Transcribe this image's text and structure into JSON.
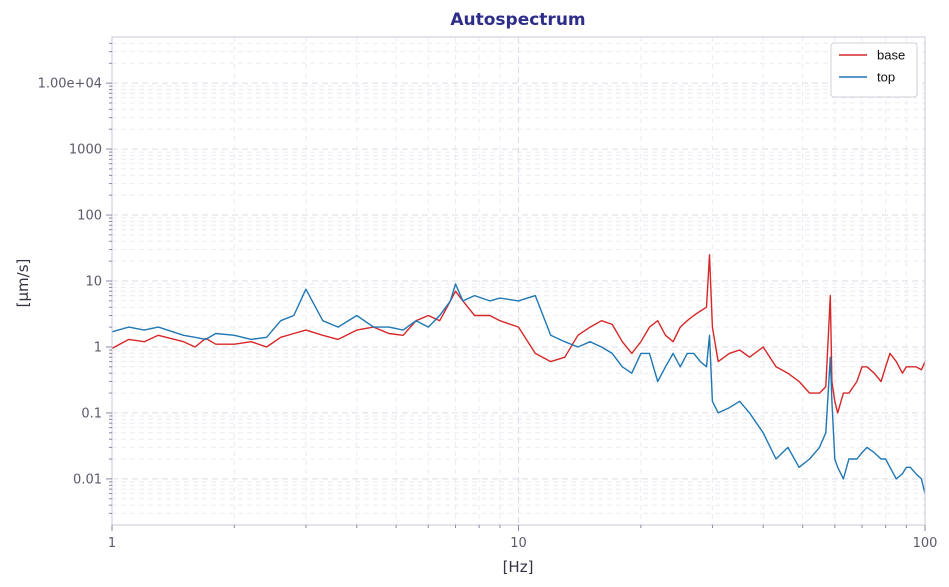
{
  "chart_data": {
    "type": "line",
    "title": "Autospectrum",
    "xlabel": "[Hz]",
    "ylabel": "[µm/s]",
    "xscale": "log",
    "yscale": "log",
    "xlim": [
      1,
      100
    ],
    "ylim": [
      0.002,
      50000
    ],
    "x_ticks": [
      {
        "value": 1,
        "label": "1"
      },
      {
        "value": 10,
        "label": "10"
      },
      {
        "value": 100,
        "label": "100"
      }
    ],
    "y_ticks": [
      {
        "value": 0.01,
        "label": "0.01"
      },
      {
        "value": 0.1,
        "label": "0.1"
      },
      {
        "value": 1,
        "label": "1"
      },
      {
        "value": 10,
        "label": "10"
      },
      {
        "value": 100,
        "label": "100"
      },
      {
        "value": 1000,
        "label": "1000"
      },
      {
        "value": 10000,
        "label": "1.00e+04"
      }
    ],
    "grid": true,
    "legend_position": "top-right",
    "series": [
      {
        "name": "base",
        "color": "#d62728",
        "x": [
          1,
          1.1,
          1.2,
          1.3,
          1.5,
          1.6,
          1.7,
          1.8,
          2.0,
          2.2,
          2.4,
          2.6,
          2.8,
          3.0,
          3.3,
          3.6,
          4.0,
          4.4,
          4.8,
          5.2,
          5.6,
          6.0,
          6.4,
          6.8,
          7.0,
          7.3,
          7.8,
          8.5,
          9.0,
          10,
          11,
          12,
          13,
          14,
          15,
          16,
          17,
          18,
          19,
          20,
          21,
          22,
          23,
          24,
          25,
          26,
          27,
          28,
          29,
          29.5,
          30,
          31,
          33,
          35,
          37,
          40,
          43,
          46,
          49,
          52,
          55,
          57,
          58.5,
          59,
          60,
          61,
          63,
          65,
          68,
          70,
          72,
          75,
          78,
          80,
          82,
          85,
          88,
          90,
          92,
          95,
          98,
          100
        ],
        "y": [
          0.95,
          1.3,
          1.2,
          1.5,
          1.2,
          1.0,
          1.35,
          1.1,
          1.1,
          1.2,
          1.0,
          1.4,
          1.6,
          1.8,
          1.5,
          1.3,
          1.8,
          2.0,
          1.6,
          1.5,
          2.5,
          3.0,
          2.5,
          5.0,
          7.0,
          5.0,
          3.0,
          3.0,
          2.5,
          2.0,
          0.8,
          0.6,
          0.7,
          1.5,
          2.0,
          2.5,
          2.2,
          1.2,
          0.8,
          1.2,
          2.0,
          2.5,
          1.5,
          1.2,
          2.0,
          2.5,
          3.0,
          3.5,
          4.0,
          25.0,
          2.0,
          0.6,
          0.8,
          0.9,
          0.7,
          1.0,
          0.5,
          0.4,
          0.3,
          0.2,
          0.2,
          0.25,
          6.0,
          0.3,
          0.15,
          0.1,
          0.2,
          0.2,
          0.3,
          0.5,
          0.5,
          0.4,
          0.3,
          0.5,
          0.8,
          0.6,
          0.4,
          0.5,
          0.5,
          0.5,
          0.45,
          0.6
        ]
      },
      {
        "name": "top",
        "color": "#1f77b4",
        "x": [
          1,
          1.1,
          1.2,
          1.3,
          1.5,
          1.6,
          1.7,
          1.8,
          2.0,
          2.2,
          2.4,
          2.6,
          2.8,
          3.0,
          3.3,
          3.6,
          4.0,
          4.4,
          4.8,
          5.2,
          5.6,
          6.0,
          6.4,
          6.8,
          7.0,
          7.3,
          7.8,
          8.5,
          9.0,
          10,
          11,
          12,
          13,
          14,
          15,
          16,
          17,
          18,
          19,
          20,
          21,
          22,
          23,
          24,
          25,
          26,
          27,
          28,
          29,
          29.5,
          30,
          31,
          33,
          35,
          37,
          40,
          43,
          46,
          49,
          52,
          55,
          57,
          58.5,
          59,
          60,
          61,
          63,
          65,
          68,
          70,
          72,
          75,
          78,
          80,
          82,
          85,
          88,
          90,
          92,
          95,
          98,
          100
        ],
        "y": [
          1.7,
          2.0,
          1.8,
          2.0,
          1.5,
          1.4,
          1.3,
          1.6,
          1.5,
          1.3,
          1.4,
          2.5,
          3.0,
          7.5,
          2.5,
          2.0,
          3.0,
          2.0,
          2.0,
          1.8,
          2.5,
          2.0,
          3.0,
          5.0,
          9.0,
          5.0,
          6.0,
          5.0,
          5.5,
          5.0,
          6.0,
          1.5,
          1.2,
          1.0,
          1.2,
          1.0,
          0.8,
          0.5,
          0.4,
          0.8,
          0.8,
          0.3,
          0.5,
          0.8,
          0.5,
          0.8,
          0.8,
          0.6,
          0.5,
          1.5,
          0.15,
          0.1,
          0.12,
          0.15,
          0.1,
          0.05,
          0.02,
          0.03,
          0.015,
          0.02,
          0.03,
          0.05,
          0.7,
          0.15,
          0.02,
          0.015,
          0.01,
          0.02,
          0.02,
          0.025,
          0.03,
          0.025,
          0.02,
          0.02,
          0.015,
          0.01,
          0.012,
          0.015,
          0.015,
          0.012,
          0.01,
          0.006
        ]
      }
    ]
  }
}
